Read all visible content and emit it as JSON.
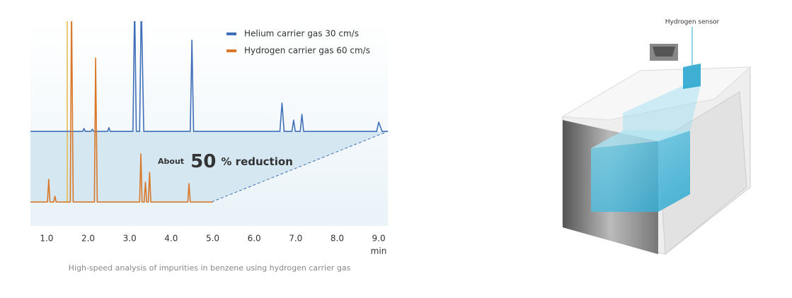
{
  "chart_data": {
    "type": "line",
    "caption": "High-speed analysis of impurities in benzene using hydrogen carrier gas",
    "xlabel": "min",
    "annotation": {
      "prefix": "About",
      "number": "50",
      "suffix": "% reduction"
    },
    "xlim": [
      0.61,
      9.22
    ],
    "ylim": [
      0,
      100
    ],
    "xticks": [
      {
        "value": 1,
        "label": "1.0"
      },
      {
        "value": 2,
        "label": "2.0"
      },
      {
        "value": 3,
        "label": "3.0"
      },
      {
        "value": 4,
        "label": "4.0"
      },
      {
        "value": 5,
        "label": "5.0"
      },
      {
        "value": 6,
        "label": "6.0"
      },
      {
        "value": 7,
        "label": "7.0"
      },
      {
        "value": 8,
        "label": "8.0"
      },
      {
        "value": 9,
        "label": "9.0"
      }
    ],
    "series": [
      {
        "name": "Helium carrier gas 30 cm/s",
        "color": "#3f6fb8",
        "x": [
          0.61,
          1.87,
          1.9,
          1.93,
          2.07,
          2.1,
          2.13,
          2.47,
          2.5,
          2.53,
          3.08,
          3.12,
          3.16,
          3.24,
          3.28,
          3.34,
          4.46,
          4.5,
          4.54,
          6.62,
          6.67,
          6.72,
          6.91,
          6.95,
          6.99,
          7.11,
          7.15,
          7.19,
          8.95,
          9.0,
          9.08,
          9.22
        ],
        "values": [
          46.2,
          46.2,
          47.6,
          46.2,
          46.2,
          47.2,
          46.2,
          46.2,
          48,
          46.2,
          46.2,
          110,
          46.2,
          46.2,
          110,
          46.2,
          46.2,
          90.7,
          46.2,
          46.2,
          60,
          46.2,
          46.2,
          51.7,
          46.2,
          46.2,
          54.5,
          46.2,
          46.2,
          50.7,
          46.2,
          46.2
        ]
      },
      {
        "name": "Hydrogen carrier gas  60 cm/s",
        "color": "#d9782a",
        "x": [
          0.61,
          1.02,
          1.05,
          1.08,
          1.17,
          1.2,
          1.23,
          1.57,
          1.6,
          1.64,
          2.15,
          2.18,
          2.22,
          3.24,
          3.27,
          3.3,
          3.35,
          3.38,
          3.41,
          3.45,
          3.48,
          3.51,
          4.4,
          4.43,
          4.46,
          5.0
        ],
        "values": [
          11.7,
          11.7,
          22.8,
          11.7,
          11.7,
          14.5,
          11.7,
          11.7,
          110,
          11.7,
          11.7,
          82,
          11.7,
          11.7,
          35.2,
          11.7,
          11.7,
          21.4,
          11.7,
          11.7,
          26.2,
          11.7,
          11.7,
          20.7,
          11.7,
          11.7
        ]
      }
    ]
  },
  "product_image": {
    "label": "Hydrogen sensor"
  }
}
